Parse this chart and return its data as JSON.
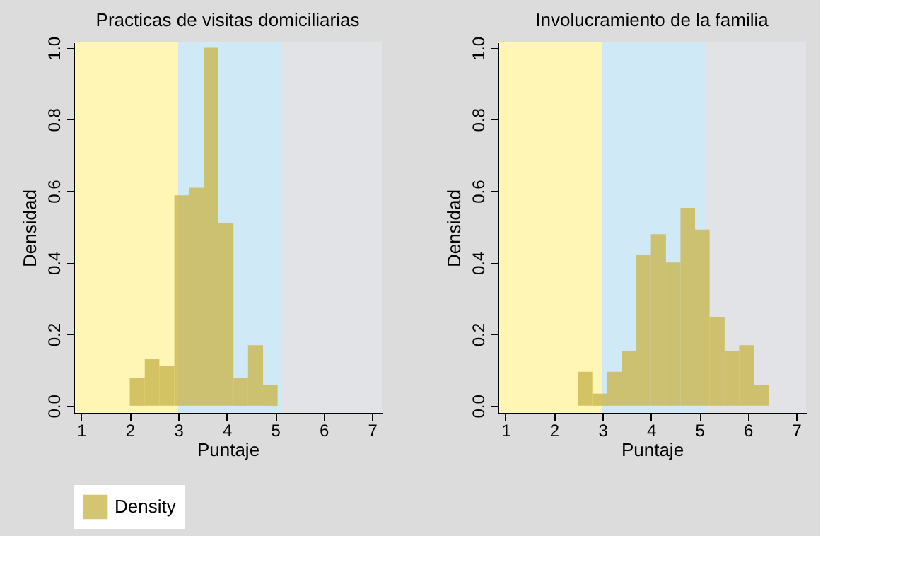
{
  "chart_data": [
    {
      "type": "histogram",
      "title": "Practicas de visitas domiciliarias",
      "xlabel": "Puntaje",
      "ylabel": "Densidad",
      "bins": [
        2.0,
        2.31,
        2.61,
        2.92,
        3.22,
        3.53,
        3.83,
        4.14,
        4.44,
        4.75,
        5.05
      ],
      "series": [
        {
          "name": "Density",
          "color": "#c9b74f",
          "values": [
            0.077,
            0.13,
            0.112,
            0.588,
            0.609,
            1.0,
            0.51,
            0.077,
            0.169,
            0.057
          ]
        }
      ],
      "xlim": [
        0.84,
        7.2
      ],
      "xticks": [
        1,
        2,
        3,
        4,
        5,
        6,
        7
      ],
      "ylim": [
        -0.02,
        1.015
      ],
      "yticks": [
        {
          "value": 0,
          "label": "0.0"
        },
        {
          "value": 0.2,
          "label": "0.2"
        },
        {
          "value": 0.4,
          "label": "0.4"
        },
        {
          "value": 0.6,
          "label": "0.6"
        },
        {
          "value": 0.8,
          "label": "0.8"
        },
        {
          "value": 1,
          "label": "1.0"
        }
      ],
      "bands": [
        {
          "axis": "x",
          "from": 0.84,
          "to": 3.0,
          "color": "#fff5b4"
        },
        {
          "axis": "x",
          "from": 3.0,
          "to": 5.12,
          "color": "#d0e9f7"
        },
        {
          "axis": "x",
          "from": 5.12,
          "to": 7.2,
          "color": "#e1e3e7"
        }
      ],
      "grid": false,
      "legend": "bottom"
    },
    {
      "type": "histogram",
      "title": "Involucramiento de la familia",
      "xlabel": "Puntaje",
      "ylabel": "Densidad",
      "bins": [
        2.49,
        2.79,
        3.1,
        3.4,
        3.7,
        4.0,
        4.31,
        4.61,
        4.91,
        5.21,
        5.52,
        5.82,
        6.12,
        6.43
      ],
      "series": [
        {
          "name": "Density",
          "color": "#c9b74f",
          "values": [
            0.095,
            0.034,
            0.095,
            0.153,
            0.422,
            0.479,
            0.4,
            0.553,
            0.492,
            0.248,
            0.153,
            0.169,
            0.057
          ]
        }
      ],
      "xlim": [
        0.84,
        7.2
      ],
      "xticks": [
        1,
        2,
        3,
        4,
        5,
        6,
        7
      ],
      "ylim": [
        -0.02,
        1.015
      ],
      "yticks": [
        {
          "value": 0,
          "label": "0.0"
        },
        {
          "value": 0.2,
          "label": "0.2"
        },
        {
          "value": 0.4,
          "label": "0.4"
        },
        {
          "value": 0.6,
          "label": "0.6"
        },
        {
          "value": 0.8,
          "label": "0.8"
        },
        {
          "value": 1,
          "label": "1.0"
        }
      ],
      "bands": [
        {
          "axis": "x",
          "from": 0.84,
          "to": 3.0,
          "color": "#fff5b4"
        },
        {
          "axis": "x",
          "from": 3.0,
          "to": 5.12,
          "color": "#d0e9f7"
        },
        {
          "axis": "x",
          "from": 5.12,
          "to": 7.2,
          "color": "#e1e3e7"
        }
      ],
      "grid": false,
      "legend": "bottom"
    }
  ]
}
